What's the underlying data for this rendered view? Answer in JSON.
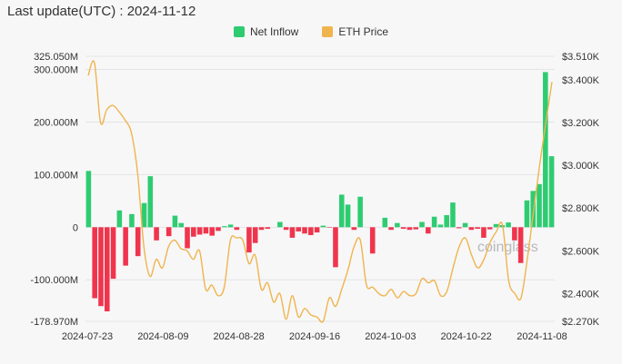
{
  "header": {
    "title": "Last update(UTC) : 2024-11-12"
  },
  "legend": [
    {
      "name": "Net Inflow",
      "color": "#2ecc71"
    },
    {
      "name": "ETH Price",
      "color": "#f0b44c"
    }
  ],
  "watermark": "coinglass",
  "colors": {
    "positive": "#2ecc71",
    "negative": "#f0344c",
    "line": "#f0b44c",
    "grid": "#e4e4e8"
  },
  "chart_data": {
    "type": "bar",
    "series": [
      {
        "name": "Net Inflow",
        "type": "bar",
        "axis": "left",
        "values": [
          107,
          -135,
          -150,
          -160,
          -98,
          32,
          -73,
          25,
          -55,
          46,
          97,
          -25,
          0,
          -17,
          22,
          8,
          -40,
          -18,
          -14,
          -12,
          -16,
          -7,
          2,
          5,
          -5,
          0,
          -48,
          -30,
          -5,
          -3,
          0,
          10,
          -5,
          -20,
          -8,
          -12,
          -15,
          -10,
          3,
          -1,
          -76,
          62,
          43,
          -5,
          58,
          0,
          -50,
          0,
          18,
          -5,
          8,
          -3,
          -5,
          -4,
          10,
          -12,
          20,
          5,
          23,
          47,
          -2,
          8,
          -5,
          -3,
          -20,
          -4,
          6,
          4,
          9,
          -25,
          -68,
          51,
          69,
          82,
          295,
          135
        ]
      },
      {
        "name": "ETH Price",
        "type": "line",
        "axis": "right",
        "values": [
          3420,
          3480,
          3200,
          3260,
          3280,
          3250,
          3210,
          3150,
          2960,
          2620,
          2480,
          2560,
          2520,
          2620,
          2650,
          2610,
          2600,
          2560,
          2600,
          2420,
          2440,
          2390,
          2430,
          2650,
          2660,
          2650,
          2540,
          2580,
          2420,
          2450,
          2360,
          2400,
          2280,
          2390,
          2290,
          2330,
          2300,
          2290,
          2270,
          2380,
          2340,
          2420,
          2510,
          2620,
          2650,
          2440,
          2430,
          2400,
          2390,
          2420,
          2380,
          2410,
          2390,
          2400,
          2470,
          2450,
          2460,
          2390,
          2410,
          2520,
          2620,
          2660,
          2580,
          2520,
          2560,
          2640,
          2690,
          2720,
          2460,
          2400,
          2380,
          2560,
          2780,
          3000,
          3200,
          3390
        ]
      }
    ],
    "y_left": {
      "ticks": [
        "325.050M",
        "300.000M",
        "200.000M",
        "100.000M",
        "0",
        "-100.000M",
        "-178.970M"
      ],
      "range": [
        -178.97,
        325.05
      ]
    },
    "y_right": {
      "ticks": [
        "$3.510K",
        "$3.400K",
        "$3.200K",
        "$3.000K",
        "$2.800K",
        "$2.600K",
        "$2.400K",
        "$2.270K"
      ],
      "range": [
        2270,
        3510
      ]
    },
    "x_labels": [
      "2024-07-23",
      "2024-08-09",
      "2024-08-28",
      "2024-09-16",
      "2024-10-03",
      "2024-10-22",
      "2024-11-08"
    ],
    "grid": true,
    "legend_position": "top-center"
  }
}
